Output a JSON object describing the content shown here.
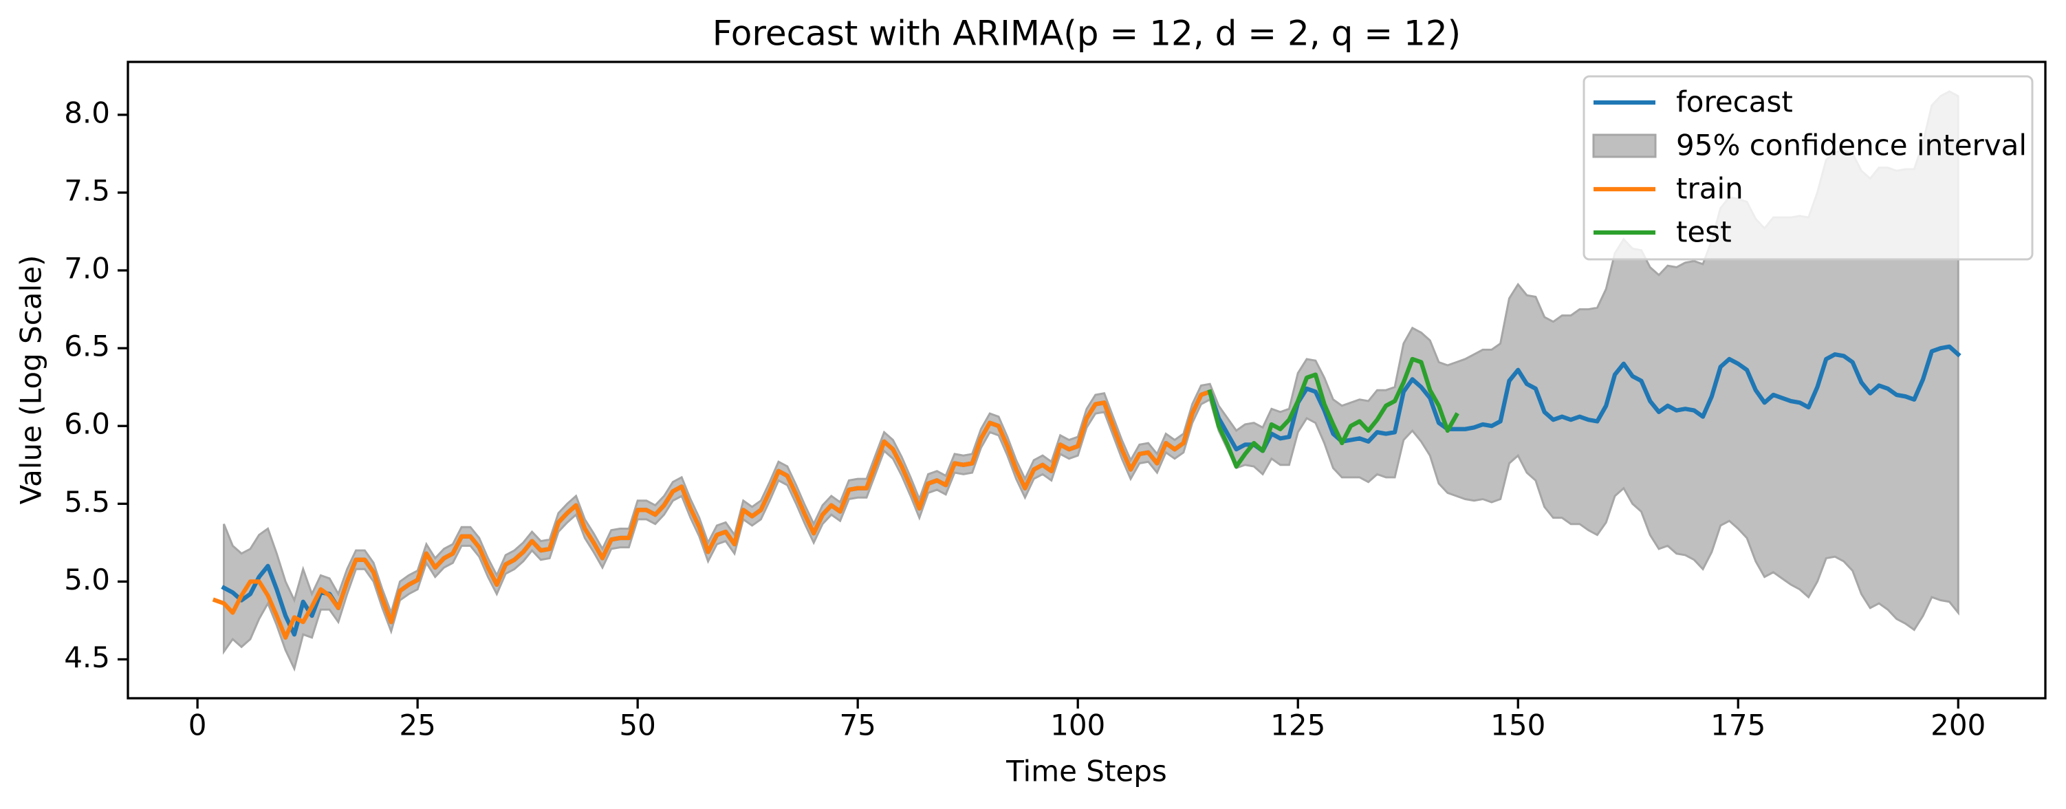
{
  "chart_data": {
    "type": "line",
    "title": "Forecast with ARIMA(p = 12, d = 2, q = 12)",
    "xlabel": "Time Steps",
    "ylabel": "Value (Log Scale)",
    "xlim": [
      -7.9,
      209.9
    ],
    "ylim": [
      4.25,
      8.34
    ],
    "xticks": [
      0,
      25,
      50,
      75,
      100,
      125,
      150,
      175,
      200
    ],
    "yticks": [
      4.5,
      {
        "value": 5,
        "label": "5.0"
      },
      5.5,
      {
        "value": 6,
        "label": "6.0"
      },
      6.5,
      {
        "value": 7,
        "label": "7.0"
      },
      7.5,
      {
        "value": 8,
        "label": "8.0"
      }
    ],
    "grid": false,
    "legend": "upper right",
    "series": [
      {
        "name": "forecast",
        "color": "#1f77b4",
        "x": [
          3,
          4,
          5,
          6,
          7,
          8,
          9,
          10,
          11,
          12,
          13,
          14,
          15,
          16,
          17,
          18,
          19,
          20,
          21,
          22,
          23,
          24,
          25,
          26,
          27,
          28,
          29,
          30,
          31,
          32,
          33,
          34,
          35,
          36,
          37,
          38,
          39,
          40,
          41,
          42,
          43,
          44,
          45,
          46,
          47,
          48,
          49,
          50,
          51,
          52,
          53,
          54,
          55,
          56,
          57,
          58,
          59,
          60,
          61,
          62,
          63,
          64,
          65,
          66,
          67,
          68,
          69,
          70,
          71,
          72,
          73,
          74,
          75,
          76,
          77,
          78,
          79,
          80,
          81,
          82,
          83,
          84,
          85,
          86,
          87,
          88,
          89,
          90,
          91,
          92,
          93,
          94,
          95,
          96,
          97,
          98,
          99,
          100,
          101,
          102,
          103,
          104,
          105,
          106,
          107,
          108,
          109,
          110,
          111,
          112,
          113,
          114,
          115,
          116,
          117,
          118,
          119,
          120,
          121,
          122,
          123,
          124,
          125,
          126,
          127,
          128,
          129,
          130,
          131,
          132,
          133,
          134,
          135,
          136,
          137,
          138,
          139,
          140,
          141,
          142,
          143,
          144,
          145,
          146,
          147,
          148,
          149,
          150,
          151,
          152,
          153,
          154,
          155,
          156,
          157,
          158,
          159,
          160,
          161,
          162,
          163,
          164,
          165,
          166,
          167,
          168,
          169,
          170,
          171,
          172,
          173,
          174,
          175,
          176,
          177,
          178,
          179,
          180,
          181,
          182,
          183,
          184,
          185,
          186,
          187,
          188,
          189,
          190,
          191,
          192,
          193,
          194,
          195,
          196,
          197,
          198,
          199,
          200
        ],
        "values": [
          4.96,
          4.93,
          4.88,
          4.92,
          5.03,
          5.1,
          4.95,
          4.78,
          4.66,
          4.87,
          4.78,
          4.93,
          4.92,
          4.83,
          5.0,
          5.14,
          5.14,
          5.06,
          4.89,
          4.74,
          4.94,
          4.98,
          5.01,
          5.18,
          5.09,
          5.15,
          5.18,
          5.29,
          5.29,
          5.22,
          5.09,
          4.98,
          5.11,
          5.14,
          5.19,
          5.26,
          5.2,
          5.21,
          5.38,
          5.44,
          5.49,
          5.34,
          5.25,
          5.15,
          5.27,
          5.28,
          5.28,
          5.46,
          5.46,
          5.43,
          5.49,
          5.58,
          5.61,
          5.47,
          5.35,
          5.19,
          5.3,
          5.32,
          5.24,
          5.46,
          5.42,
          5.46,
          5.58,
          5.71,
          5.68,
          5.56,
          5.43,
          5.31,
          5.43,
          5.49,
          5.45,
          5.59,
          5.6,
          5.6,
          5.75,
          5.9,
          5.85,
          5.74,
          5.61,
          5.47,
          5.63,
          5.65,
          5.62,
          5.76,
          5.75,
          5.76,
          5.92,
          6.02,
          6.0,
          5.87,
          5.72,
          5.6,
          5.72,
          5.75,
          5.71,
          5.88,
          5.85,
          5.87,
          6.05,
          6.14,
          6.15,
          6.0,
          5.85,
          5.72,
          5.82,
          5.83,
          5.76,
          5.89,
          5.85,
          5.89,
          6.08,
          6.2,
          6.22,
          6.05,
          5.95,
          5.85,
          5.88,
          5.88,
          5.84,
          5.95,
          5.92,
          5.93,
          6.15,
          6.24,
          6.22,
          6.1,
          5.95,
          5.9,
          5.91,
          5.92,
          5.9,
          5.96,
          5.95,
          5.96,
          6.22,
          6.3,
          6.25,
          6.18,
          6.02,
          5.98,
          5.98,
          5.98,
          5.99,
          6.01,
          6.0,
          6.03,
          6.29,
          6.36,
          6.27,
          6.24,
          6.09,
          6.04,
          6.06,
          6.04,
          6.06,
          6.04,
          6.03,
          6.13,
          6.33,
          6.4,
          6.32,
          6.29,
          6.16,
          6.09,
          6.13,
          6.1,
          6.11,
          6.1,
          6.06,
          6.19,
          6.38,
          6.43,
          6.4,
          6.36,
          6.23,
          6.15,
          6.2,
          6.18,
          6.16,
          6.15,
          6.12,
          6.25,
          6.43,
          6.46,
          6.45,
          6.41,
          6.28,
          6.21,
          6.26,
          6.24,
          6.2,
          6.19,
          6.17,
          6.3,
          6.48,
          6.5,
          6.51,
          6.46
        ],
        "interval": {
          "name": "95% confidence interval",
          "color": "#bfbfbf",
          "edge": "#a6a6a6",
          "lower": [
            4.55,
            4.63,
            4.58,
            4.63,
            4.76,
            4.86,
            4.72,
            4.56,
            4.44,
            4.66,
            4.64,
            4.82,
            4.82,
            4.74,
            4.92,
            5.08,
            5.08,
            5.0,
            4.83,
            4.68,
            4.88,
            4.92,
            4.95,
            5.12,
            5.03,
            5.09,
            5.12,
            5.23,
            5.23,
            5.16,
            5.03,
            4.92,
            5.05,
            5.08,
            5.13,
            5.2,
            5.14,
            5.15,
            5.32,
            5.38,
            5.43,
            5.28,
            5.19,
            5.09,
            5.21,
            5.22,
            5.22,
            5.4,
            5.4,
            5.37,
            5.43,
            5.52,
            5.55,
            5.41,
            5.29,
            5.13,
            5.24,
            5.26,
            5.18,
            5.4,
            5.36,
            5.4,
            5.52,
            5.65,
            5.62,
            5.5,
            5.37,
            5.25,
            5.37,
            5.43,
            5.39,
            5.53,
            5.54,
            5.54,
            5.69,
            5.84,
            5.79,
            5.68,
            5.55,
            5.41,
            5.57,
            5.59,
            5.56,
            5.7,
            5.69,
            5.7,
            5.86,
            5.96,
            5.94,
            5.81,
            5.66,
            5.54,
            5.66,
            5.69,
            5.65,
            5.82,
            5.79,
            5.81,
            5.99,
            6.08,
            6.09,
            5.94,
            5.79,
            5.66,
            5.76,
            5.77,
            5.7,
            5.83,
            5.79,
            5.83,
            6.02,
            6.14,
            6.17,
            5.97,
            5.85,
            5.73,
            5.75,
            5.74,
            5.69,
            5.79,
            5.75,
            5.75,
            5.96,
            6.05,
            6.02,
            5.89,
            5.73,
            5.67,
            5.67,
            5.67,
            5.64,
            5.69,
            5.67,
            5.67,
            5.91,
            5.97,
            5.9,
            5.81,
            5.63,
            5.57,
            5.55,
            5.53,
            5.52,
            5.53,
            5.51,
            5.53,
            5.76,
            5.81,
            5.7,
            5.65,
            5.48,
            5.41,
            5.41,
            5.37,
            5.37,
            5.33,
            5.3,
            5.38,
            5.55,
            5.6,
            5.5,
            5.45,
            5.3,
            5.21,
            5.23,
            5.18,
            5.17,
            5.14,
            5.08,
            5.19,
            5.36,
            5.39,
            5.34,
            5.28,
            5.13,
            5.03,
            5.06,
            5.02,
            4.98,
            4.95,
            4.9,
            5.0,
            5.15,
            5.16,
            5.13,
            5.07,
            4.92,
            4.83,
            4.86,
            4.82,
            4.76,
            4.73,
            4.69,
            4.78,
            4.9,
            4.88,
            4.87,
            4.8
          ],
          "upper": [
            5.37,
            5.23,
            5.18,
            5.21,
            5.3,
            5.34,
            5.18,
            5.0,
            4.88,
            5.08,
            4.92,
            5.04,
            5.02,
            4.92,
            5.08,
            5.2,
            5.2,
            5.12,
            4.95,
            4.8,
            5.0,
            5.04,
            5.07,
            5.24,
            5.15,
            5.21,
            5.24,
            5.35,
            5.35,
            5.28,
            5.15,
            5.04,
            5.17,
            5.2,
            5.25,
            5.32,
            5.26,
            5.27,
            5.44,
            5.5,
            5.55,
            5.4,
            5.31,
            5.21,
            5.33,
            5.34,
            5.34,
            5.52,
            5.52,
            5.49,
            5.55,
            5.64,
            5.67,
            5.53,
            5.41,
            5.25,
            5.36,
            5.38,
            5.3,
            5.52,
            5.48,
            5.52,
            5.64,
            5.77,
            5.74,
            5.62,
            5.49,
            5.37,
            5.49,
            5.55,
            5.51,
            5.65,
            5.66,
            5.66,
            5.81,
            5.96,
            5.91,
            5.8,
            5.67,
            5.53,
            5.69,
            5.71,
            5.68,
            5.82,
            5.81,
            5.82,
            5.98,
            6.08,
            6.06,
            5.93,
            5.78,
            5.66,
            5.78,
            5.81,
            5.77,
            5.94,
            5.91,
            5.93,
            6.11,
            6.2,
            6.21,
            6.06,
            5.91,
            5.78,
            5.88,
            5.89,
            5.82,
            5.95,
            5.91,
            5.95,
            6.14,
            6.26,
            6.27,
            6.13,
            6.05,
            5.97,
            6.01,
            6.02,
            5.99,
            6.11,
            6.09,
            6.11,
            6.34,
            6.43,
            6.42,
            6.31,
            6.17,
            6.13,
            6.15,
            6.17,
            6.16,
            6.23,
            6.23,
            6.25,
            6.53,
            6.63,
            6.6,
            6.55,
            6.41,
            6.39,
            6.41,
            6.43,
            6.46,
            6.49,
            6.49,
            6.53,
            6.82,
            6.91,
            6.84,
            6.83,
            6.7,
            6.67,
            6.71,
            6.71,
            6.75,
            6.75,
            6.76,
            6.88,
            7.11,
            7.2,
            7.14,
            7.13,
            7.02,
            6.97,
            7.03,
            7.02,
            7.05,
            7.06,
            7.04,
            7.19,
            7.4,
            7.47,
            7.46,
            7.44,
            7.33,
            7.27,
            7.34,
            7.34,
            7.34,
            7.35,
            7.34,
            7.5,
            7.71,
            7.76,
            7.77,
            7.75,
            7.64,
            7.59,
            7.66,
            7.66,
            7.64,
            7.65,
            7.65,
            7.82,
            8.06,
            8.12,
            8.15,
            8.12
          ]
        }
      },
      {
        "name": "train",
        "color": "#ff7f0e",
        "x": [
          2,
          3,
          4,
          5,
          6,
          7,
          8,
          9,
          10,
          11,
          12,
          13,
          14,
          15,
          16,
          17,
          18,
          19,
          20,
          21,
          22,
          23,
          24,
          25,
          26,
          27,
          28,
          29,
          30,
          31,
          32,
          33,
          34,
          35,
          36,
          37,
          38,
          39,
          40,
          41,
          42,
          43,
          44,
          45,
          46,
          47,
          48,
          49,
          50,
          51,
          52,
          53,
          54,
          55,
          56,
          57,
          58,
          59,
          60,
          61,
          62,
          63,
          64,
          65,
          66,
          67,
          68,
          69,
          70,
          71,
          72,
          73,
          74,
          75,
          76,
          77,
          78,
          79,
          80,
          81,
          82,
          83,
          84,
          85,
          86,
          87,
          88,
          89,
          90,
          91,
          92,
          93,
          94,
          95,
          96,
          97,
          98,
          99,
          100,
          101,
          102,
          103,
          104,
          105,
          106,
          107,
          108,
          109,
          110,
          111,
          112,
          113,
          114,
          115
        ],
        "values": [
          4.88,
          4.86,
          4.8,
          4.91,
          5.0,
          5.0,
          4.91,
          4.78,
          4.64,
          4.77,
          4.74,
          4.84,
          4.95,
          4.91,
          4.83,
          5.0,
          5.14,
          5.14,
          5.06,
          4.89,
          4.74,
          4.94,
          4.98,
          5.01,
          5.18,
          5.09,
          5.15,
          5.18,
          5.29,
          5.29,
          5.22,
          5.09,
          4.98,
          5.11,
          5.14,
          5.19,
          5.26,
          5.2,
          5.21,
          5.38,
          5.44,
          5.49,
          5.34,
          5.25,
          5.15,
          5.27,
          5.28,
          5.28,
          5.46,
          5.46,
          5.43,
          5.49,
          5.58,
          5.61,
          5.47,
          5.35,
          5.19,
          5.3,
          5.32,
          5.24,
          5.46,
          5.42,
          5.46,
          5.58,
          5.71,
          5.68,
          5.56,
          5.43,
          5.31,
          5.43,
          5.49,
          5.45,
          5.59,
          5.6,
          5.6,
          5.75,
          5.9,
          5.85,
          5.74,
          5.61,
          5.47,
          5.63,
          5.65,
          5.62,
          5.76,
          5.75,
          5.76,
          5.92,
          6.02,
          6.0,
          5.87,
          5.72,
          5.6,
          5.72,
          5.75,
          5.71,
          5.88,
          5.85,
          5.87,
          6.05,
          6.14,
          6.15,
          6.0,
          5.85,
          5.72,
          5.82,
          5.83,
          5.76,
          5.89,
          5.85,
          5.89,
          6.08,
          6.2,
          6.22
        ]
      },
      {
        "name": "test",
        "color": "#2ca02c",
        "x": [
          115,
          116,
          117,
          118,
          119,
          120,
          121,
          122,
          123,
          124,
          125,
          126,
          127,
          128,
          129,
          130,
          131,
          132,
          133,
          134,
          135,
          136,
          137,
          138,
          139,
          140,
          141,
          142,
          143
        ],
        "values": [
          6.22,
          6.0,
          5.88,
          5.74,
          5.82,
          5.89,
          5.84,
          6.01,
          5.98,
          6.04,
          6.16,
          6.31,
          6.33,
          6.14,
          6.01,
          5.89,
          6.0,
          6.03,
          5.97,
          6.04,
          6.13,
          6.16,
          6.28,
          6.43,
          6.41,
          6.23,
          6.13,
          5.97,
          6.07
        ]
      }
    ]
  }
}
